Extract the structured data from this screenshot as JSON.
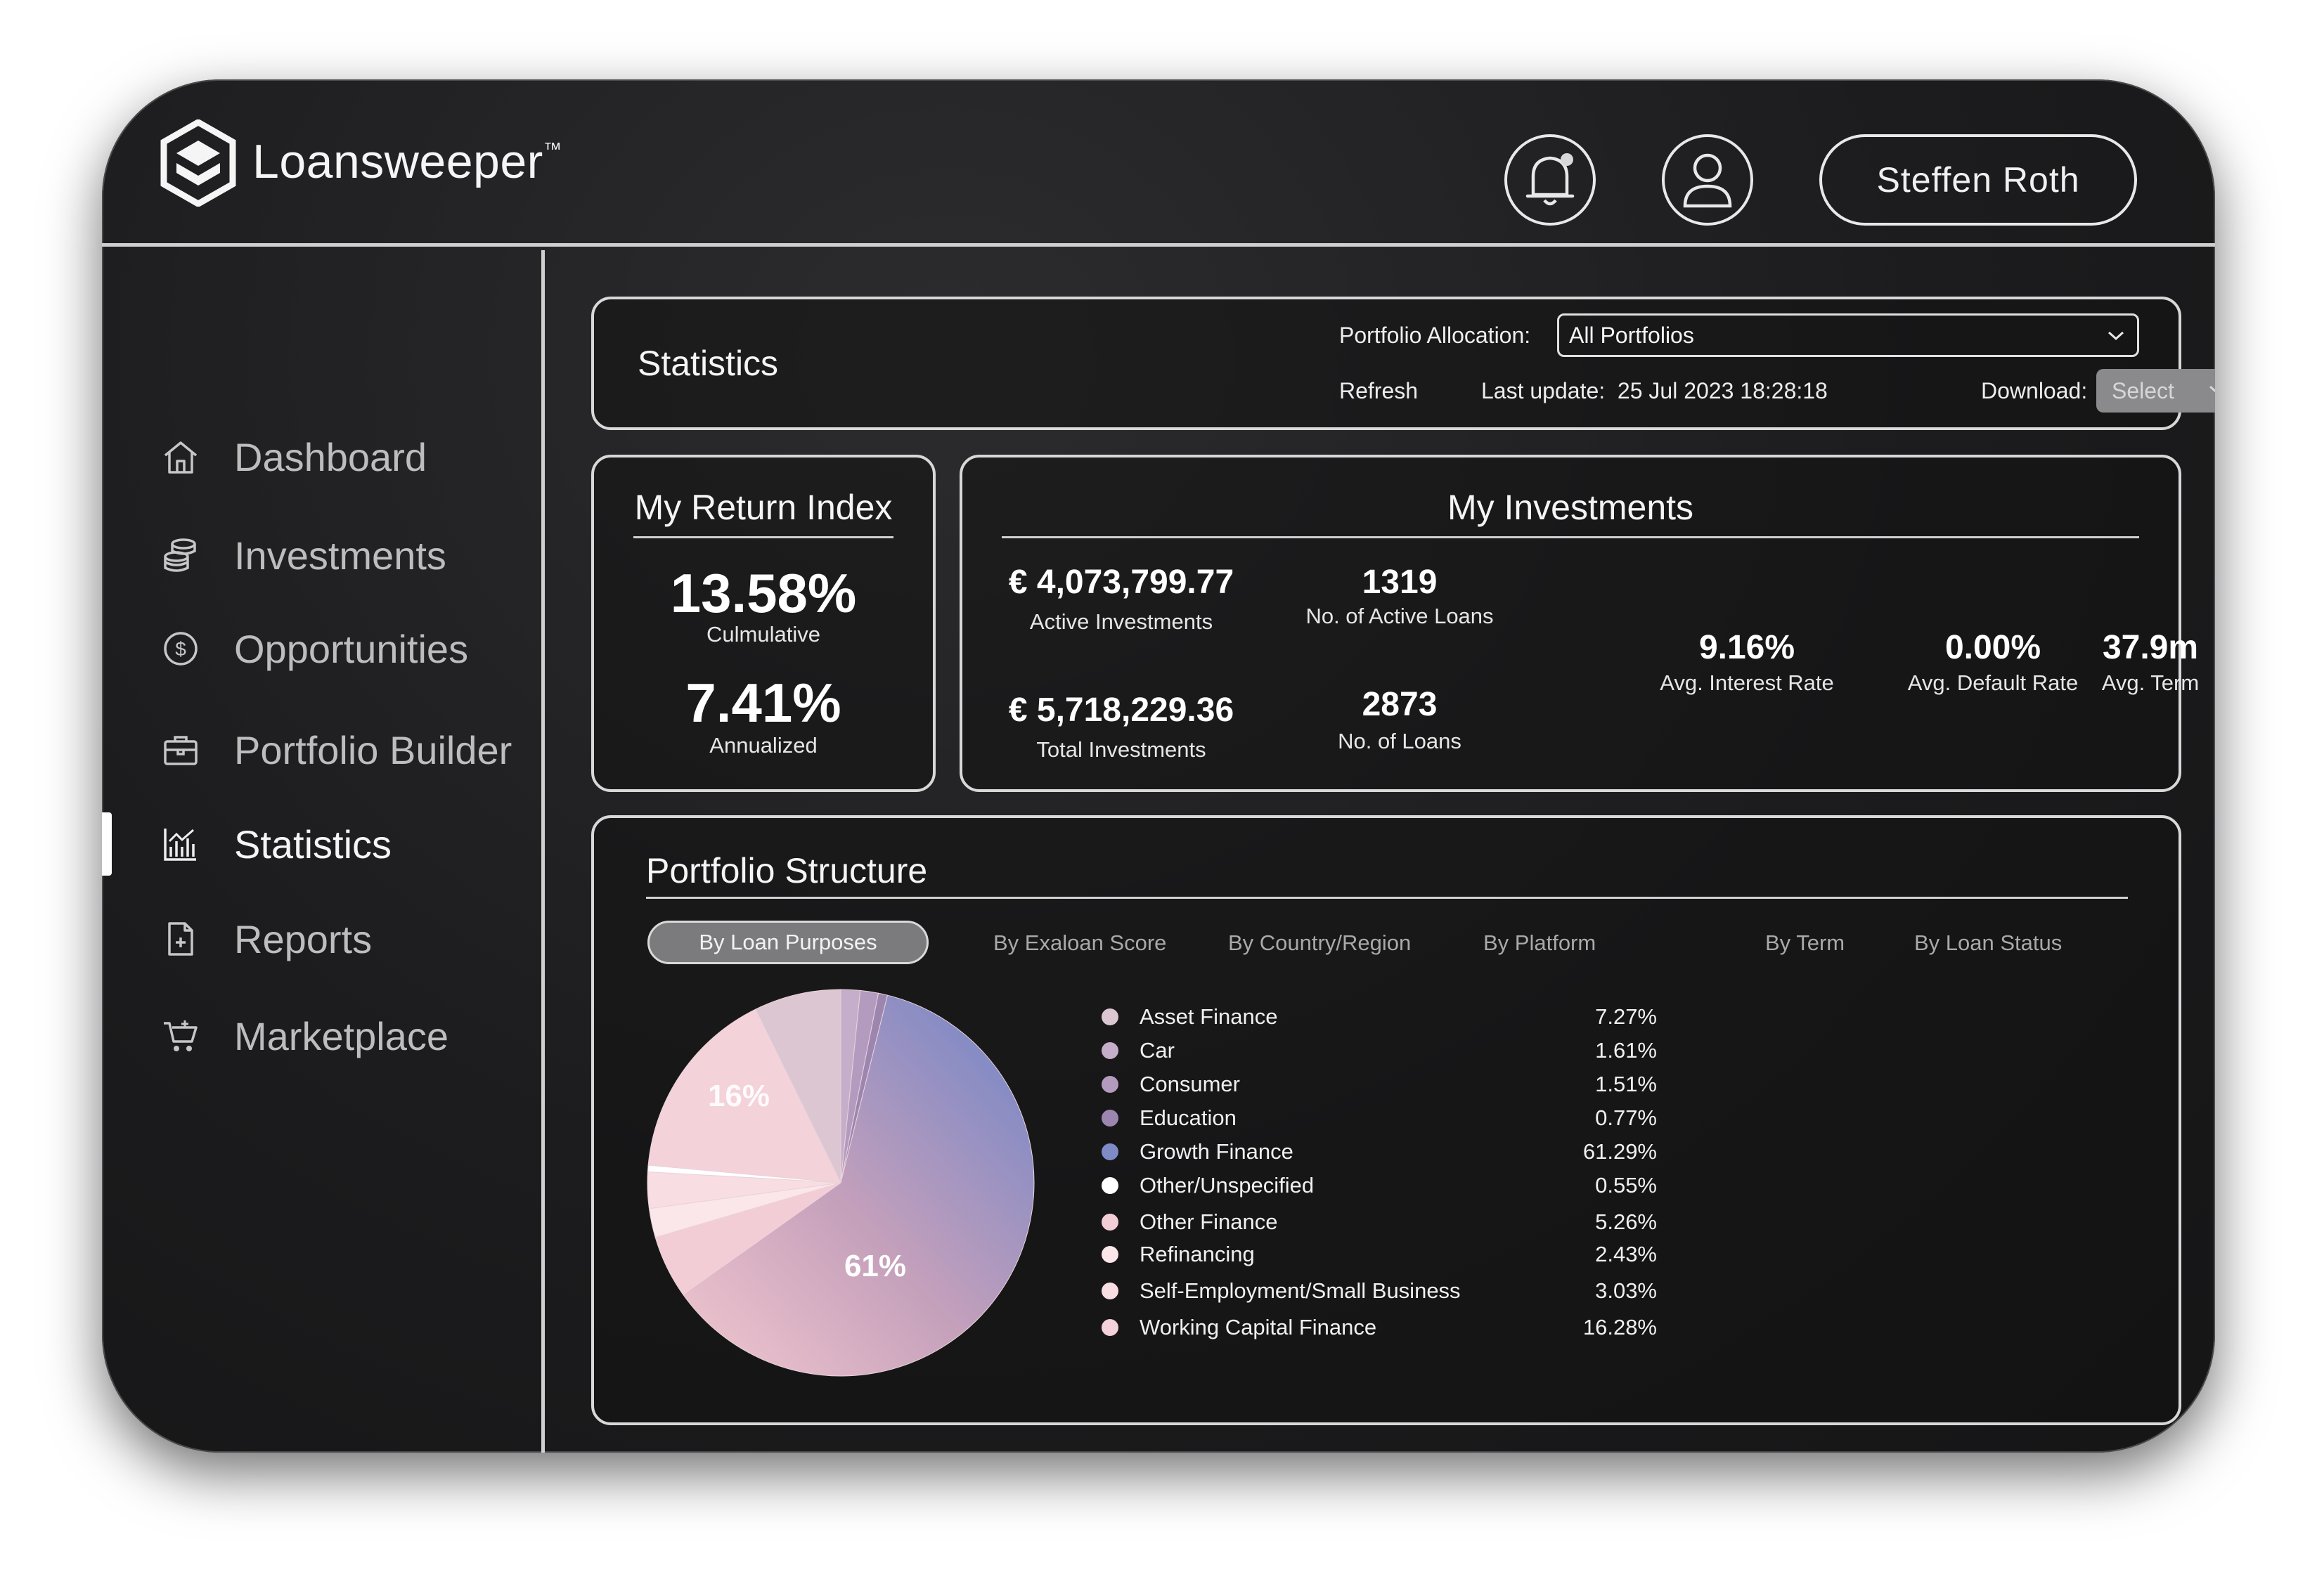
{
  "brand": {
    "name": "Loansweeper",
    "tm": "™"
  },
  "header": {
    "user_name": "Steffen Roth"
  },
  "sidebar": {
    "items": [
      {
        "label": "Dashboard",
        "icon": "home-icon"
      },
      {
        "label": "Investments",
        "icon": "coins-icon"
      },
      {
        "label": "Opportunities",
        "icon": "dollar-circle-icon"
      },
      {
        "label": "Portfolio Builder",
        "icon": "briefcase-icon"
      },
      {
        "label": "Statistics",
        "icon": "bar-chart-icon",
        "active": true
      },
      {
        "label": "Reports",
        "icon": "document-add-icon"
      },
      {
        "label": "Marketplace",
        "icon": "cart-icon"
      }
    ]
  },
  "statistics": {
    "title": "Statistics",
    "allocation_label": "Portfolio Allocation:",
    "allocation_value": "All Portfolios",
    "refresh_label": "Refresh",
    "last_update_label": "Last update:",
    "last_update_value": "25 Jul 2023 18:28:18",
    "download_label": "Download:",
    "download_value": "Select"
  },
  "return_index": {
    "title": "My Return Index",
    "cumulative_value": "13.58%",
    "cumulative_label": "Culmulative",
    "annualized_value": "7.41%",
    "annualized_label": "Annualized"
  },
  "investments": {
    "title": "My Investments",
    "active_investments_value": "€ 4,073,799.77",
    "active_investments_label": "Active Investments",
    "active_loans_value": "1319",
    "active_loans_label": "No. of Active Loans",
    "total_investments_value": "€ 5,718,229.36",
    "total_investments_label": "Total Investments",
    "loans_value": "2873",
    "loans_label": "No. of Loans",
    "interest_value": "9.16%",
    "interest_label": "Avg. Interest Rate",
    "default_value": "0.00%",
    "default_label": "Avg. Default Rate",
    "term_value": "37.9m",
    "term_label": "Avg. Term"
  },
  "structure": {
    "title": "Portfolio Structure",
    "tabs": [
      "By Loan Purposes",
      "By Exaloan Score",
      "By Country/Region",
      "By Platform",
      "By Term",
      "By Loan Status"
    ],
    "active_tab": 0,
    "pie_label_large": "61%",
    "pie_label_medium": "16%"
  },
  "chart_data": {
    "type": "pie",
    "categories": [
      "Asset Finance",
      "Car",
      "Consumer",
      "Education",
      "Growth Finance",
      "Other/Unspecified",
      "Other Finance",
      "Refinancing",
      "Self-Employment/Small Business",
      "Working Capital Finance"
    ],
    "value_labels": [
      "7.27%",
      "1.61%",
      "1.51%",
      "0.77%",
      "61.29%",
      "0.55%",
      "5.26%",
      "2.43%",
      "3.03%",
      "16.28%"
    ],
    "values": [
      7.27,
      1.61,
      1.51,
      0.77,
      61.29,
      0.55,
      5.26,
      2.43,
      3.03,
      16.28
    ],
    "colors": [
      "#dcc6d2",
      "#c5aec9",
      "#b39bc0",
      "#9c86af",
      "#7e8bc6",
      "#ffffff",
      "#f3cdd6",
      "#fbe6ea",
      "#f8dde3",
      "#f4d2d9"
    ],
    "legend": "right"
  }
}
